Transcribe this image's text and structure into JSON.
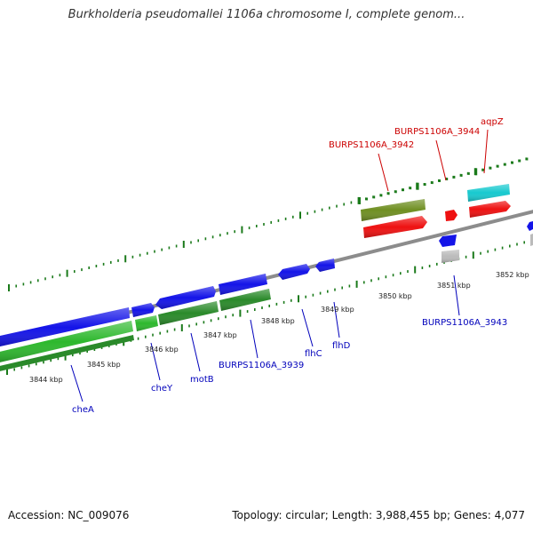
{
  "title": "Burkholderia pseudomallei 1106a chromosome I, complete genom...",
  "accession": "Accession: NC_009076",
  "topology": "Topology: circular; Length: 3,988,455 bp; Genes: 4,077",
  "colors": {
    "forward_gene": "#1414e8",
    "forward_green": "#2db82d",
    "dark_green": "#2a8a2a",
    "olive": "#6f8f22",
    "red": "#ee1111",
    "cyan": "#17c9cf",
    "grey": "#bbbbbb",
    "backbone": "#888888",
    "tick": "#1a7a1a",
    "label_blue": "#0000bb",
    "label_red": "#cc0000"
  },
  "scale_labels": [
    "3844 kbp",
    "3845 kbp",
    "3846 kbp",
    "3847 kbp",
    "3848 kbp",
    "3849 kbp",
    "3850 kbp",
    "3851 kbp",
    "3852 kbp"
  ],
  "gene_labels": {
    "blue": [
      "cheA",
      "cheY",
      "motB",
      "BURPS1106A_3939",
      "flhC",
      "flhD",
      "BURPS1106A_3943"
    ],
    "red": [
      "BURPS1106A_3942",
      "BURPS1106A_3944",
      "aqpZ"
    ]
  }
}
